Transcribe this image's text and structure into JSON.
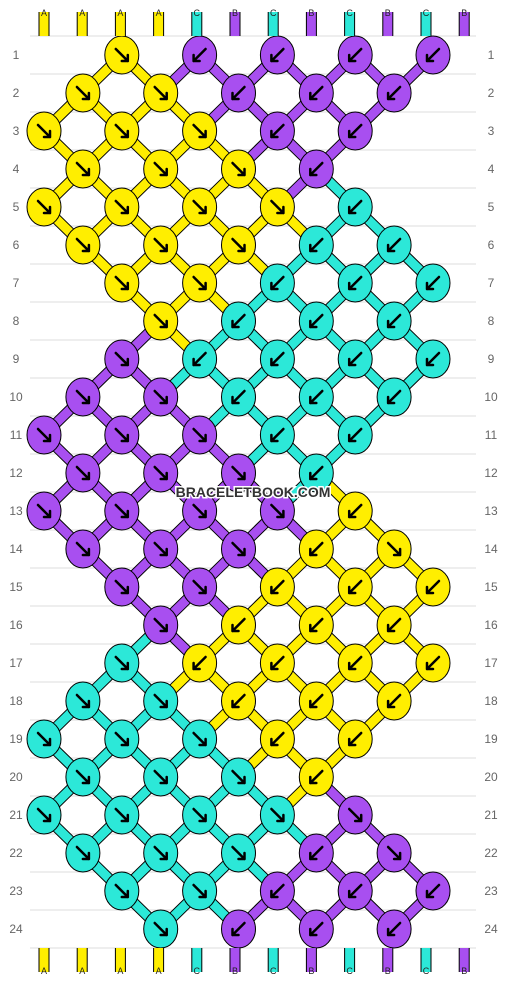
{
  "watermark": "BRACELETBOOK.COM",
  "colors": {
    "A": "#ffee00",
    "B": "#a84ff0",
    "C": "#2ce8d8"
  },
  "strands_top": [
    "A",
    "A",
    "A",
    "A",
    "C",
    "B",
    "C",
    "B",
    "C",
    "B",
    "C",
    "B"
  ],
  "strands_bottom": [
    "A",
    "A",
    "A",
    "A",
    "C",
    "B",
    "C",
    "B",
    "C",
    "B",
    "C",
    "B"
  ],
  "row_labels": [
    "1",
    "2",
    "3",
    "4",
    "5",
    "6",
    "7",
    "8",
    "9",
    "10",
    "11",
    "12",
    "13",
    "14",
    "15",
    "16",
    "17",
    "18",
    "19",
    "20",
    "21",
    "22",
    "23",
    "24"
  ],
  "knots": [
    {
      "row": 1,
      "col": 3,
      "color": "A",
      "dir": "R"
    },
    {
      "row": 1,
      "col": 5,
      "color": "B",
      "dir": "L"
    },
    {
      "row": 1,
      "col": 7,
      "color": "B",
      "dir": "L"
    },
    {
      "row": 1,
      "col": 9,
      "color": "B",
      "dir": "L"
    },
    {
      "row": 1,
      "col": 11,
      "color": "B",
      "dir": "L"
    },
    {
      "row": 2,
      "col": 2,
      "color": "A",
      "dir": "R"
    },
    {
      "row": 2,
      "col": 4,
      "color": "A",
      "dir": "R"
    },
    {
      "row": 2,
      "col": 6,
      "color": "B",
      "dir": "L"
    },
    {
      "row": 2,
      "col": 8,
      "color": "B",
      "dir": "L"
    },
    {
      "row": 2,
      "col": 10,
      "color": "B",
      "dir": "L"
    },
    {
      "row": 3,
      "col": 1,
      "color": "A",
      "dir": "R"
    },
    {
      "row": 3,
      "col": 3,
      "color": "A",
      "dir": "R"
    },
    {
      "row": 3,
      "col": 5,
      "color": "A",
      "dir": "R"
    },
    {
      "row": 3,
      "col": 7,
      "color": "B",
      "dir": "L"
    },
    {
      "row": 3,
      "col": 9,
      "color": "B",
      "dir": "L"
    },
    {
      "row": 4,
      "col": 2,
      "color": "A",
      "dir": "R"
    },
    {
      "row": 4,
      "col": 4,
      "color": "A",
      "dir": "R"
    },
    {
      "row": 4,
      "col": 6,
      "color": "A",
      "dir": "R"
    },
    {
      "row": 4,
      "col": 8,
      "color": "B",
      "dir": "L"
    },
    {
      "row": 5,
      "col": 1,
      "color": "A",
      "dir": "R"
    },
    {
      "row": 5,
      "col": 3,
      "color": "A",
      "dir": "R"
    },
    {
      "row": 5,
      "col": 5,
      "color": "A",
      "dir": "R"
    },
    {
      "row": 5,
      "col": 7,
      "color": "A",
      "dir": "R"
    },
    {
      "row": 5,
      "col": 9,
      "color": "C",
      "dir": "L"
    },
    {
      "row": 6,
      "col": 2,
      "color": "A",
      "dir": "R"
    },
    {
      "row": 6,
      "col": 4,
      "color": "A",
      "dir": "R"
    },
    {
      "row": 6,
      "col": 6,
      "color": "A",
      "dir": "R"
    },
    {
      "row": 6,
      "col": 8,
      "color": "C",
      "dir": "L"
    },
    {
      "row": 6,
      "col": 10,
      "color": "C",
      "dir": "L"
    },
    {
      "row": 7,
      "col": 3,
      "color": "A",
      "dir": "R"
    },
    {
      "row": 7,
      "col": 5,
      "color": "A",
      "dir": "R"
    },
    {
      "row": 7,
      "col": 7,
      "color": "C",
      "dir": "L"
    },
    {
      "row": 7,
      "col": 9,
      "color": "C",
      "dir": "L"
    },
    {
      "row": 7,
      "col": 11,
      "color": "C",
      "dir": "L"
    },
    {
      "row": 8,
      "col": 4,
      "color": "A",
      "dir": "R"
    },
    {
      "row": 8,
      "col": 6,
      "color": "C",
      "dir": "L"
    },
    {
      "row": 8,
      "col": 8,
      "color": "C",
      "dir": "L"
    },
    {
      "row": 8,
      "col": 10,
      "color": "C",
      "dir": "L"
    },
    {
      "row": 9,
      "col": 3,
      "color": "B",
      "dir": "R"
    },
    {
      "row": 9,
      "col": 5,
      "color": "C",
      "dir": "L"
    },
    {
      "row": 9,
      "col": 7,
      "color": "C",
      "dir": "L"
    },
    {
      "row": 9,
      "col": 9,
      "color": "C",
      "dir": "L"
    },
    {
      "row": 9,
      "col": 11,
      "color": "C",
      "dir": "L"
    },
    {
      "row": 10,
      "col": 2,
      "color": "B",
      "dir": "R"
    },
    {
      "row": 10,
      "col": 4,
      "color": "B",
      "dir": "R"
    },
    {
      "row": 10,
      "col": 6,
      "color": "C",
      "dir": "L"
    },
    {
      "row": 10,
      "col": 8,
      "color": "C",
      "dir": "L"
    },
    {
      "row": 10,
      "col": 10,
      "color": "C",
      "dir": "L"
    },
    {
      "row": 11,
      "col": 1,
      "color": "B",
      "dir": "R"
    },
    {
      "row": 11,
      "col": 3,
      "color": "B",
      "dir": "R"
    },
    {
      "row": 11,
      "col": 5,
      "color": "B",
      "dir": "R"
    },
    {
      "row": 11,
      "col": 7,
      "color": "C",
      "dir": "L"
    },
    {
      "row": 11,
      "col": 9,
      "color": "C",
      "dir": "L"
    },
    {
      "row": 12,
      "col": 2,
      "color": "B",
      "dir": "R"
    },
    {
      "row": 12,
      "col": 4,
      "color": "B",
      "dir": "R"
    },
    {
      "row": 12,
      "col": 6,
      "color": "B",
      "dir": "R"
    },
    {
      "row": 12,
      "col": 8,
      "color": "C",
      "dir": "L"
    },
    {
      "row": 13,
      "col": 1,
      "color": "B",
      "dir": "R"
    },
    {
      "row": 13,
      "col": 3,
      "color": "B",
      "dir": "R"
    },
    {
      "row": 13,
      "col": 5,
      "color": "B",
      "dir": "R"
    },
    {
      "row": 13,
      "col": 7,
      "color": "B",
      "dir": "R"
    },
    {
      "row": 13,
      "col": 9,
      "color": "A",
      "dir": "L"
    },
    {
      "row": 14,
      "col": 2,
      "color": "B",
      "dir": "R"
    },
    {
      "row": 14,
      "col": 4,
      "color": "B",
      "dir": "R"
    },
    {
      "row": 14,
      "col": 6,
      "color": "B",
      "dir": "R"
    },
    {
      "row": 14,
      "col": 8,
      "color": "A",
      "dir": "L"
    },
    {
      "row": 14,
      "col": 10,
      "color": "A",
      "dir": "R"
    },
    {
      "row": 15,
      "col": 3,
      "color": "B",
      "dir": "R"
    },
    {
      "row": 15,
      "col": 5,
      "color": "B",
      "dir": "R"
    },
    {
      "row": 15,
      "col": 7,
      "color": "A",
      "dir": "L"
    },
    {
      "row": 15,
      "col": 9,
      "color": "A",
      "dir": "L"
    },
    {
      "row": 15,
      "col": 11,
      "color": "A",
      "dir": "L"
    },
    {
      "row": 16,
      "col": 4,
      "color": "B",
      "dir": "R"
    },
    {
      "row": 16,
      "col": 6,
      "color": "A",
      "dir": "L"
    },
    {
      "row": 16,
      "col": 8,
      "color": "A",
      "dir": "L"
    },
    {
      "row": 16,
      "col": 10,
      "color": "A",
      "dir": "L"
    },
    {
      "row": 17,
      "col": 3,
      "color": "C",
      "dir": "R"
    },
    {
      "row": 17,
      "col": 5,
      "color": "A",
      "dir": "L"
    },
    {
      "row": 17,
      "col": 7,
      "color": "A",
      "dir": "L"
    },
    {
      "row": 17,
      "col": 9,
      "color": "A",
      "dir": "L"
    },
    {
      "row": 17,
      "col": 11,
      "color": "A",
      "dir": "L"
    },
    {
      "row": 18,
      "col": 2,
      "color": "C",
      "dir": "R"
    },
    {
      "row": 18,
      "col": 4,
      "color": "C",
      "dir": "R"
    },
    {
      "row": 18,
      "col": 6,
      "color": "A",
      "dir": "L"
    },
    {
      "row": 18,
      "col": 8,
      "color": "A",
      "dir": "L"
    },
    {
      "row": 18,
      "col": 10,
      "color": "A",
      "dir": "L"
    },
    {
      "row": 19,
      "col": 1,
      "color": "C",
      "dir": "R"
    },
    {
      "row": 19,
      "col": 3,
      "color": "C",
      "dir": "R"
    },
    {
      "row": 19,
      "col": 5,
      "color": "C",
      "dir": "R"
    },
    {
      "row": 19,
      "col": 7,
      "color": "A",
      "dir": "L"
    },
    {
      "row": 19,
      "col": 9,
      "color": "A",
      "dir": "L"
    },
    {
      "row": 20,
      "col": 2,
      "color": "C",
      "dir": "R"
    },
    {
      "row": 20,
      "col": 4,
      "color": "C",
      "dir": "R"
    },
    {
      "row": 20,
      "col": 6,
      "color": "C",
      "dir": "R"
    },
    {
      "row": 20,
      "col": 8,
      "color": "A",
      "dir": "L"
    },
    {
      "row": 21,
      "col": 1,
      "color": "C",
      "dir": "R"
    },
    {
      "row": 21,
      "col": 3,
      "color": "C",
      "dir": "R"
    },
    {
      "row": 21,
      "col": 5,
      "color": "C",
      "dir": "R"
    },
    {
      "row": 21,
      "col": 7,
      "color": "C",
      "dir": "R"
    },
    {
      "row": 21,
      "col": 9,
      "color": "B",
      "dir": "R"
    },
    {
      "row": 22,
      "col": 2,
      "color": "C",
      "dir": "R"
    },
    {
      "row": 22,
      "col": 4,
      "color": "C",
      "dir": "R"
    },
    {
      "row": 22,
      "col": 6,
      "color": "C",
      "dir": "R"
    },
    {
      "row": 22,
      "col": 8,
      "color": "B",
      "dir": "L"
    },
    {
      "row": 22,
      "col": 10,
      "color": "B",
      "dir": "R"
    },
    {
      "row": 23,
      "col": 3,
      "color": "C",
      "dir": "R"
    },
    {
      "row": 23,
      "col": 5,
      "color": "C",
      "dir": "R"
    },
    {
      "row": 23,
      "col": 7,
      "color": "B",
      "dir": "L"
    },
    {
      "row": 23,
      "col": 9,
      "color": "B",
      "dir": "L"
    },
    {
      "row": 23,
      "col": 11,
      "color": "B",
      "dir": "L"
    },
    {
      "row": 24,
      "col": 4,
      "color": "C",
      "dir": "R"
    },
    {
      "row": 24,
      "col": 6,
      "color": "B",
      "dir": "L"
    },
    {
      "row": 24,
      "col": 8,
      "color": "B",
      "dir": "L"
    },
    {
      "row": 24,
      "col": 10,
      "color": "B",
      "dir": "L"
    }
  ]
}
